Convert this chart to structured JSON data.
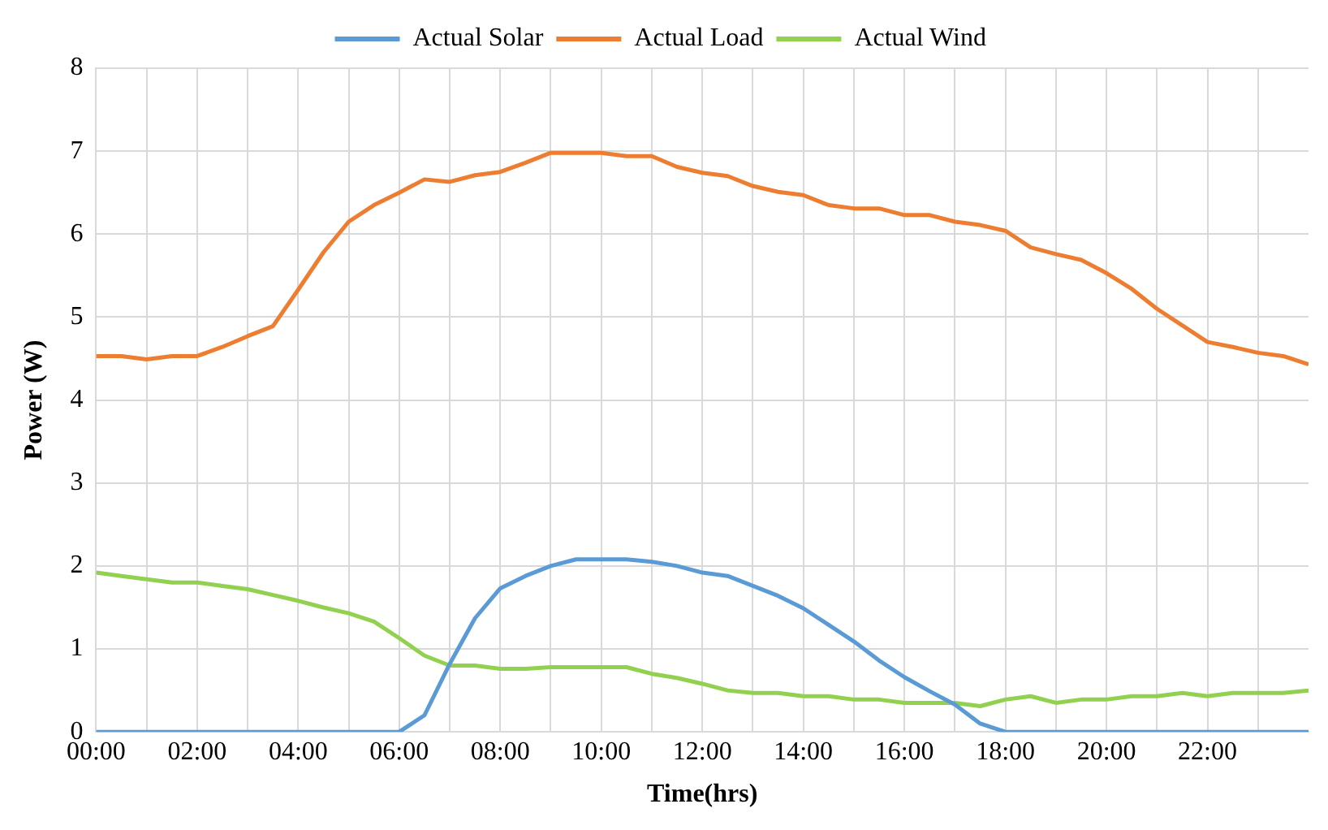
{
  "chart_data": {
    "type": "line",
    "xlabel": "Time(hrs)",
    "ylabel": "Power (W)",
    "x": [
      0,
      0.5,
      1,
      1.5,
      2,
      2.5,
      3,
      3.5,
      4,
      4.5,
      5,
      5.5,
      6,
      6.5,
      7,
      7.5,
      8,
      8.5,
      9,
      9.5,
      10,
      10.5,
      11,
      11.5,
      12,
      12.5,
      13,
      13.5,
      14,
      14.5,
      15,
      15.5,
      16,
      16.5,
      17,
      17.5,
      18,
      18.5,
      19,
      19.5,
      20,
      20.5,
      21,
      21.5,
      22,
      22.5,
      23,
      23.5,
      24
    ],
    "series": [
      {
        "name": "Actual Solar",
        "color": "#5b9bd5",
        "values": [
          0,
          0,
          0,
          0,
          0,
          0,
          0,
          0,
          0,
          0,
          0,
          0,
          0,
          0.2,
          0.82,
          1.37,
          1.73,
          1.88,
          2.0,
          2.08,
          2.08,
          2.08,
          2.05,
          2.0,
          1.92,
          1.88,
          1.76,
          1.64,
          1.49,
          1.29,
          1.09,
          0.86,
          0.66,
          0.49,
          0.33,
          0.1,
          0,
          0,
          0,
          0,
          0,
          0,
          0,
          0,
          0,
          0,
          0,
          0,
          0
        ]
      },
      {
        "name": "Actual Load",
        "color": "#ed7d31",
        "values": [
          4.53,
          4.53,
          4.49,
          4.53,
          4.53,
          4.64,
          4.77,
          4.89,
          5.33,
          5.78,
          6.15,
          6.35,
          6.5,
          6.66,
          6.63,
          6.71,
          6.75,
          6.86,
          6.98,
          6.98,
          6.98,
          6.94,
          6.94,
          6.81,
          6.74,
          6.7,
          6.58,
          6.51,
          6.47,
          6.35,
          6.31,
          6.31,
          6.23,
          6.23,
          6.15,
          6.11,
          6.04,
          5.84,
          5.76,
          5.69,
          5.53,
          5.34,
          5.1,
          4.9,
          4.7,
          4.64,
          4.57,
          4.53,
          4.43
        ]
      },
      {
        "name": "Actual Wind",
        "color": "#92d050",
        "values": [
          1.92,
          1.88,
          1.84,
          1.8,
          1.8,
          1.76,
          1.72,
          1.65,
          1.58,
          1.5,
          1.43,
          1.33,
          1.13,
          0.92,
          0.8,
          0.8,
          0.76,
          0.76,
          0.78,
          0.78,
          0.78,
          0.78,
          0.7,
          0.65,
          0.58,
          0.5,
          0.47,
          0.47,
          0.43,
          0.43,
          0.39,
          0.39,
          0.35,
          0.35,
          0.35,
          0.31,
          0.39,
          0.43,
          0.35,
          0.39,
          0.39,
          0.43,
          0.43,
          0.47,
          0.43,
          0.47,
          0.47,
          0.47,
          0.5
        ]
      }
    ],
    "xlim": [
      0,
      24
    ],
    "xticks": [
      {
        "value": 0,
        "label": "00:00"
      },
      {
        "value": 1,
        "label": null
      },
      {
        "value": 2,
        "label": "02:00"
      },
      {
        "value": 3,
        "label": null
      },
      {
        "value": 4,
        "label": "04:00"
      },
      {
        "value": 5,
        "label": null
      },
      {
        "value": 6,
        "label": "06:00"
      },
      {
        "value": 7,
        "label": null
      },
      {
        "value": 8,
        "label": "08:00"
      },
      {
        "value": 9,
        "label": null
      },
      {
        "value": 10,
        "label": "10:00"
      },
      {
        "value": 11,
        "label": null
      },
      {
        "value": 12,
        "label": "12:00"
      },
      {
        "value": 13,
        "label": null
      },
      {
        "value": 14,
        "label": "14:00"
      },
      {
        "value": 15,
        "label": null
      },
      {
        "value": 16,
        "label": "16:00"
      },
      {
        "value": 17,
        "label": null
      },
      {
        "value": 18,
        "label": "18:00"
      },
      {
        "value": 19,
        "label": null
      },
      {
        "value": 20,
        "label": "20:00"
      },
      {
        "value": 21,
        "label": null
      },
      {
        "value": 22,
        "label": "22:00"
      },
      {
        "value": 23,
        "label": null
      }
    ],
    "ylim": [
      0,
      8
    ],
    "yticks": [
      0,
      1,
      2,
      3,
      4,
      5,
      6,
      7,
      8
    ],
    "grid": true,
    "legend": "top",
    "marker": "none",
    "line_style": "solid"
  }
}
